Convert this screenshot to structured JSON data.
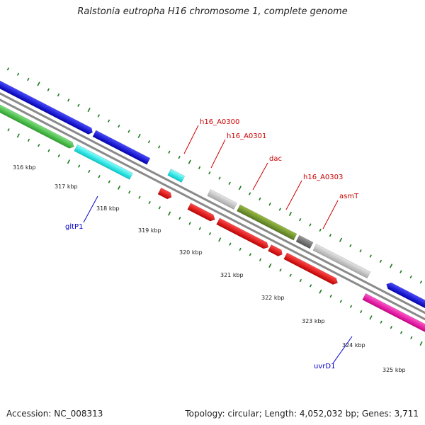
{
  "title": "Ralstonia eutropha H16 chromosome 1, complete genome",
  "footer": {
    "accession": "Accession: NC_008313",
    "summary": "Topology: circular; Length: 4,052,032 bp; Genes: 3,711"
  },
  "colors": {
    "backbone": "#8a8a8a",
    "tick": "#1a7a1a",
    "label_red": "#cc0000",
    "label_blue": "#0000cc"
  },
  "ticks": [
    "316 kbp",
    "317 kbp",
    "318 kbp",
    "319 kbp",
    "320 kbp",
    "321 kbp",
    "322 kbp",
    "323 kbp",
    "324 kbp",
    "325 kbp"
  ],
  "genes": [
    {
      "name": "h16_A0300",
      "color": "#cc0000"
    },
    {
      "name": "h16_A0301",
      "color": "#cc0000"
    },
    {
      "name": "dac",
      "color": "#cc0000"
    },
    {
      "name": "h16_A0303",
      "color": "#cc0000"
    },
    {
      "name": "asmT",
      "color": "#cc0000"
    },
    {
      "name": "gltP1",
      "color": "#0000cc"
    },
    {
      "name": "uvrD1",
      "color": "#0000cc"
    }
  ]
}
